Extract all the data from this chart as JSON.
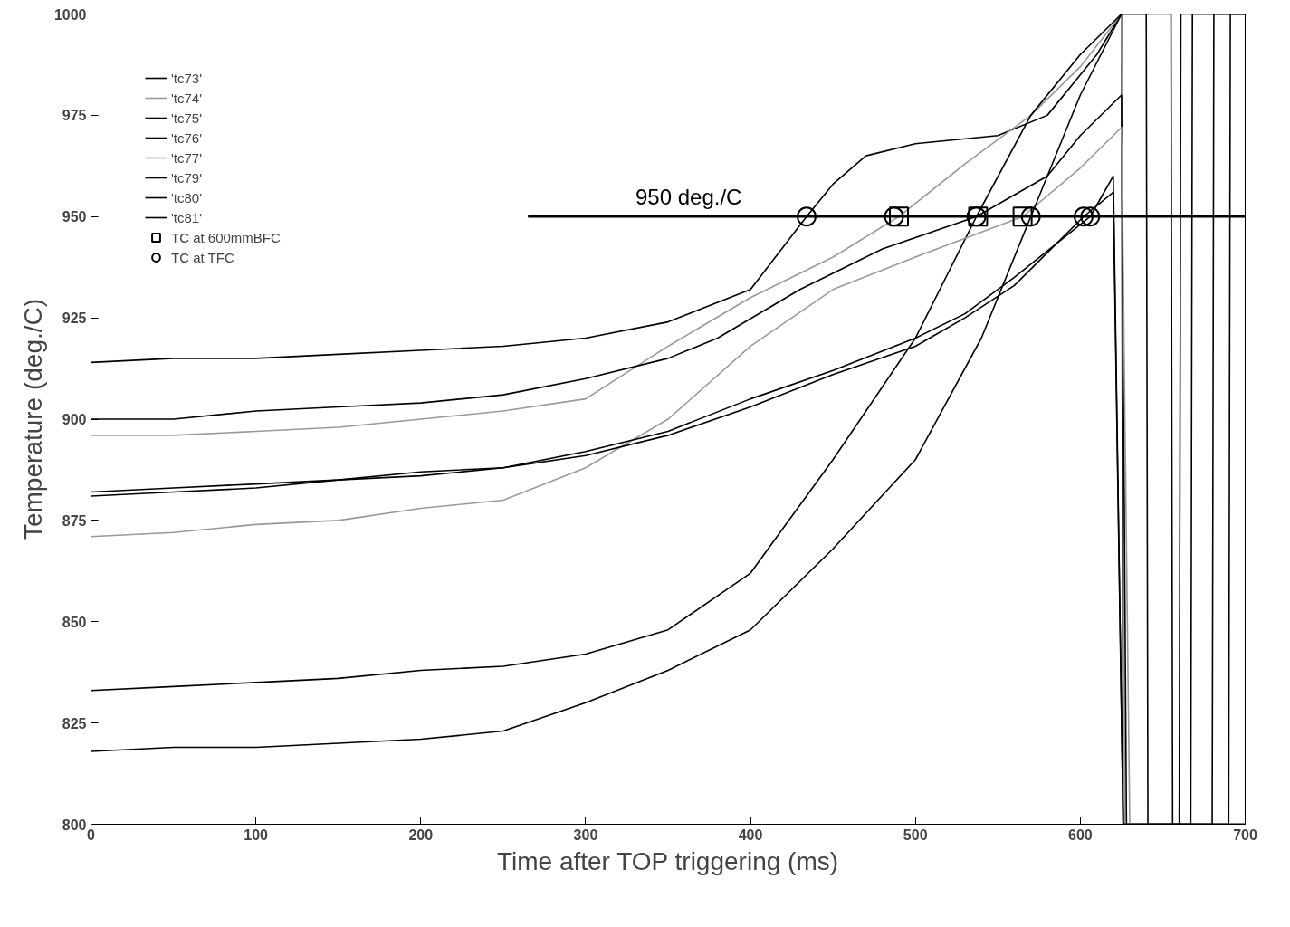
{
  "chart_data": {
    "type": "line",
    "xlabel": "Time after TOP triggering (ms)",
    "ylabel": "Temperature (deg./C)",
    "xlim": [
      0,
      700
    ],
    "ylim": [
      800,
      1000
    ],
    "xticks": [
      0,
      100,
      200,
      300,
      400,
      500,
      600,
      700
    ],
    "yticks": [
      800,
      825,
      850,
      875,
      900,
      925,
      950,
      975,
      1000
    ],
    "grid": false,
    "legend": "top left",
    "line_style": "solid",
    "series": [
      {
        "name": "'tc73'",
        "color": "#000000",
        "x": [
          0,
          50,
          100,
          150,
          200,
          250,
          300,
          350,
          400,
          434,
          450,
          470,
          500,
          550,
          580,
          610,
          625,
          626,
          660,
          661,
          700
        ],
        "values": [
          914,
          915,
          915,
          916,
          917,
          918,
          920,
          924,
          932,
          950,
          958,
          965,
          968,
          970,
          975,
          990,
          1000,
          800,
          800,
          1000,
          1000
        ]
      },
      {
        "name": "'tc74'",
        "color": "#999999",
        "x": [
          0,
          50,
          100,
          150,
          200,
          250,
          300,
          350,
          400,
          450,
          490,
          530,
          570,
          600,
          625,
          627,
          700
        ],
        "values": [
          896,
          896,
          897,
          898,
          900,
          902,
          905,
          918,
          930,
          940,
          950,
          963,
          975,
          987,
          1000,
          800,
          800
        ]
      },
      {
        "name": "'tc75'",
        "color": "#000000",
        "x": [
          0,
          50,
          100,
          150,
          200,
          250,
          300,
          350,
          380,
          430,
          480,
          537,
          580,
          600,
          625,
          628,
          680,
          681,
          700
        ],
        "values": [
          900,
          900,
          902,
          903,
          904,
          906,
          910,
          915,
          920,
          932,
          942,
          950,
          960,
          970,
          980,
          800,
          800,
          1000,
          1000
        ]
      },
      {
        "name": "'tc76'",
        "color": "#000000",
        "x": [
          0,
          50,
          100,
          150,
          200,
          250,
          300,
          350,
          400,
          450,
          500,
          537,
          570,
          600,
          625,
          640,
          641,
          700
        ],
        "values": [
          833,
          834,
          835,
          836,
          838,
          839,
          842,
          848,
          862,
          890,
          920,
          950,
          975,
          990,
          1000,
          1000,
          800,
          800
        ]
      },
      {
        "name": "'tc77'",
        "color": "#999999",
        "x": [
          0,
          50,
          100,
          150,
          200,
          250,
          300,
          350,
          400,
          450,
          500,
          565,
          600,
          625,
          630,
          700
        ],
        "values": [
          871,
          872,
          874,
          875,
          878,
          880,
          888,
          900,
          918,
          932,
          940,
          950,
          962,
          972,
          800,
          800
        ]
      },
      {
        "name": "'tc79'",
        "color": "#000000",
        "x": [
          0,
          50,
          100,
          150,
          200,
          250,
          300,
          350,
          400,
          450,
          500,
          540,
          570,
          600,
          625,
          655,
          656,
          700
        ],
        "values": [
          818,
          819,
          819,
          820,
          821,
          823,
          830,
          838,
          848,
          868,
          890,
          920,
          950,
          980,
          1000,
          1000,
          800,
          800
        ]
      },
      {
        "name": "'tc80'",
        "color": "#000000",
        "x": [
          0,
          50,
          100,
          150,
          200,
          250,
          300,
          350,
          400,
          450,
          500,
          530,
          560,
          606,
          620,
          626,
          667,
          668,
          700
        ],
        "values": [
          882,
          883,
          884,
          885,
          887,
          888,
          892,
          897,
          905,
          912,
          920,
          926,
          935,
          950,
          960,
          800,
          800,
          1000,
          1000
        ]
      },
      {
        "name": "'tc81'",
        "color": "#000000",
        "x": [
          0,
          50,
          100,
          150,
          200,
          250,
          300,
          350,
          400,
          450,
          500,
          530,
          560,
          602,
          620,
          626,
          690,
          691,
          700
        ],
        "values": [
          881,
          882,
          883,
          885,
          886,
          888,
          891,
          896,
          903,
          911,
          918,
          925,
          933,
          950,
          956,
          800,
          800,
          1000,
          1000
        ]
      },
      {
        "name": "950 deg./C",
        "type": "line",
        "color": "#000000",
        "x": [
          265,
          700
        ],
        "values": [
          950,
          950
        ]
      },
      {
        "name": "TC at 600mmBFC",
        "type": "scatter",
        "marker": "square",
        "color": "#000000",
        "x": [
          490,
          538,
          565
        ],
        "values": [
          950,
          950,
          950
        ]
      },
      {
        "name": "TC at TFC",
        "type": "scatter",
        "marker": "circle",
        "color": "#000000",
        "x": [
          434,
          487,
          537,
          570,
          602,
          606
        ],
        "values": [
          950,
          950,
          950,
          950,
          950,
          950
        ]
      }
    ]
  }
}
